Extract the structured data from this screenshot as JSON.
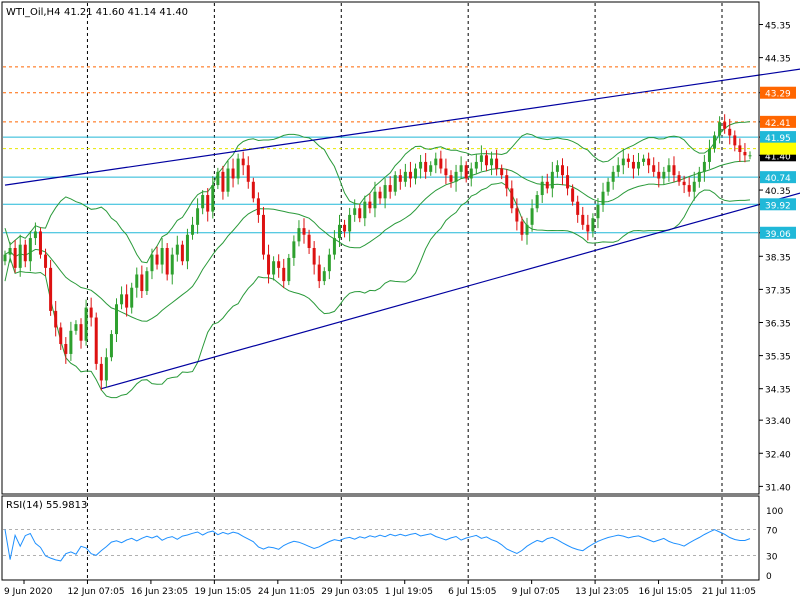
{
  "header": {
    "symbol_label": "WTI_Oil,H4",
    "ohlc_label": "41.21 41.60 41.14 41.40"
  },
  "colors": {
    "bull": "#2ea02e",
    "bear": "#dd1111",
    "band": "#2a9a3a",
    "trendline": "#0000a0",
    "hline_orange": "#ff6600",
    "hline_cyan": "#20b8d8",
    "grid_v": "#000000",
    "rsi_line": "#1e90ff",
    "rsi_level": "#b0b0b0"
  },
  "chart_data": [
    {
      "type": "candlestick",
      "instrument": "WTI_Oil",
      "timeframe": "H4",
      "ylim": [
        31.2,
        46.0
      ],
      "y_ticks": [
        45.35,
        44.35,
        43.29,
        42.41,
        41.95,
        41.4,
        40.74,
        40.35,
        39.92,
        39.06,
        38.35,
        37.35,
        36.35,
        35.35,
        34.35,
        33.4,
        32.4,
        31.4
      ],
      "x_tick_labels": [
        "9 Jun 2020",
        "12 Jun 07:05",
        "16 Jun 23:05",
        "19 Jun 15:05",
        "24 Jun 11:05",
        "29 Jun 03:05",
        "1 Jul 19:05",
        "6 Jul 15:05",
        "9 Jul 07:05",
        "13 Jul 23:05",
        "16 Jul 15:05",
        "21 Jul 11:05"
      ],
      "grid_after_ticks": [
        1,
        3,
        5,
        7,
        9,
        11
      ],
      "last_close": 41.4,
      "horizontal_levels": [
        {
          "value": 44.07,
          "label": "44.07",
          "style": "orange-dashed"
        },
        {
          "value": 43.29,
          "label": "43.29",
          "style": "orange-dashed"
        },
        {
          "value": 42.41,
          "label": "42.41",
          "style": "orange-dashed"
        },
        {
          "value": 41.95,
          "label": "41.95",
          "style": "cyan"
        },
        {
          "value": 41.6,
          "label": "",
          "style": "yellow"
        },
        {
          "value": 40.74,
          "label": "40.74",
          "style": "cyan"
        },
        {
          "value": 39.92,
          "label": "39.92",
          "style": "cyan"
        },
        {
          "value": 39.06,
          "label": "39.06",
          "style": "cyan"
        }
      ],
      "trendlines": [
        {
          "from": [
            0,
            40.5
          ],
          "to": [
            159,
            44.05
          ]
        },
        {
          "from": [
            19,
            34.35
          ],
          "to": [
            159,
            40.35
          ]
        }
      ],
      "close": [
        38.4,
        38.6,
        38.0,
        38.7,
        38.2,
        38.9,
        39.1,
        38.4,
        38.0,
        36.7,
        36.2,
        35.7,
        35.4,
        36.1,
        36.3,
        35.8,
        36.8,
        36.5,
        35.1,
        34.6,
        35.3,
        36.0,
        36.9,
        37.2,
        36.8,
        37.4,
        37.8,
        37.3,
        37.9,
        38.4,
        38.1,
        38.6,
        37.8,
        38.4,
        38.7,
        38.2,
        39.0,
        39.3,
        39.8,
        40.2,
        39.7,
        40.5,
        40.9,
        40.3,
        41.0,
        40.7,
        41.3,
        41.1,
        40.6,
        40.1,
        39.6,
        38.4,
        37.8,
        38.2,
        38.0,
        37.6,
        38.3,
        38.8,
        39.2,
        39.0,
        38.6,
        38.1,
        37.6,
        37.9,
        38.4,
        38.9,
        39.3,
        39.1,
        39.6,
        39.8,
        39.5,
        40.0,
        39.8,
        40.3,
        40.1,
        40.5,
        40.3,
        40.8,
        40.6,
        40.9,
        40.7,
        41.0,
        41.2,
        40.9,
        41.1,
        41.3,
        41.0,
        40.8,
        40.6,
        40.9,
        41.1,
        40.7,
        41.0,
        41.2,
        41.4,
        41.1,
        41.3,
        41.0,
        40.8,
        40.4,
        39.8,
        39.4,
        39.0,
        39.3,
        39.8,
        40.2,
        40.6,
        40.4,
        40.9,
        41.1,
        40.8,
        40.4,
        40.0,
        39.6,
        39.3,
        39.1,
        39.5,
        39.9,
        40.3,
        40.6,
        40.9,
        41.1,
        41.3,
        41.2,
        41.0,
        41.2,
        41.3,
        41.1,
        40.9,
        40.7,
        40.9,
        41.1,
        40.8,
        40.6,
        40.5,
        40.3,
        40.6,
        40.9,
        41.2,
        41.6,
        42.0,
        42.4,
        42.2,
        42.0,
        41.7,
        41.5,
        41.4,
        41.4
      ],
      "rsi": {
        "label": "RSI(14) 55.9813",
        "levels": [
          70,
          30
        ],
        "ticks": [
          100,
          70,
          30,
          0
        ],
        "last": 55.9813
      }
    }
  ]
}
